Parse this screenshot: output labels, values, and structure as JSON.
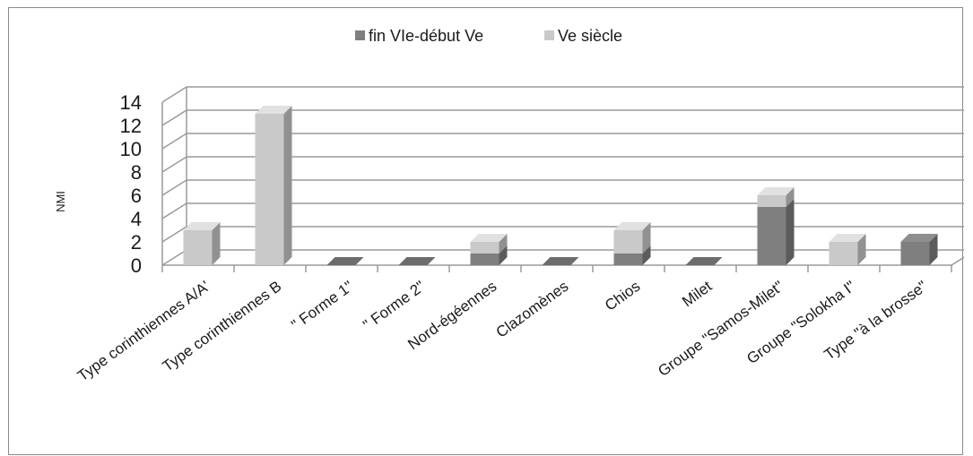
{
  "chart_data": {
    "type": "bar",
    "stacked": true,
    "three_d": true,
    "ylabel": "NMI",
    "xlabel": "",
    "ylim": [
      0,
      14
    ],
    "ytick_step": 2,
    "grid": true,
    "legend_position": "top-center",
    "categories": [
      "Type corinthiennes A/A'",
      "Type corinthiennes B",
      "\" Forme 1\"",
      "\" Forme 2\"",
      "Nord-égéennes",
      "Clazomènes",
      "Chios",
      "Milet",
      "Groupe \"Samos-Milet\"",
      "Groupe \"Solokha I\"",
      "Type \"à la brosse\""
    ],
    "series": [
      {
        "name": "fin VIe-début Ve",
        "color": "#7f7f7f",
        "values": [
          0,
          0,
          0,
          0,
          1,
          0,
          1,
          0,
          5,
          0,
          2
        ]
      },
      {
        "name": "Ve siècle",
        "color": "#c9c9c9",
        "values": [
          3,
          13,
          0,
          0,
          1,
          0,
          2,
          0,
          1,
          2,
          0
        ]
      }
    ]
  }
}
